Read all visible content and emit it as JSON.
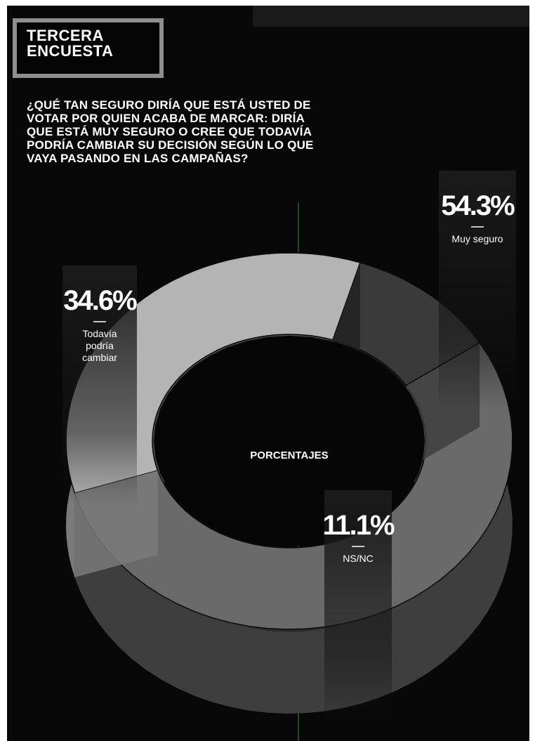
{
  "header": {
    "tag_line1": "TERCERA",
    "tag_line2": "ENCUESTA",
    "question_lines": [
      "¿QUÉ TAN SEGURO DIRÍA QUE ESTÁ USTED DE",
      "VOTAR POR QUIEN ACABA DE MARCAR: DIRÍA",
      "QUE ESTÁ MUY SEGURO O CREE QUE TODAVÍA",
      "PODRÍA CAMBIAR SU DECISIÓN SEGÚN LO QUE",
      "VAYA PASANDO EN LAS CAMPAÑAS?"
    ]
  },
  "colors": {
    "background": "#080808",
    "muy_seguro": "#6a6a6a",
    "todavia": "#b4b4b4",
    "nsnc": "#3a3a3a",
    "divider": "#2f7a3e"
  },
  "chart_data": {
    "type": "pie",
    "title": "",
    "center_label": "PORCENTAJES",
    "slices": [
      {
        "value": 54.3,
        "value_label": "54.3%",
        "label_lines": [
          "Muy seguro"
        ]
      },
      {
        "value": 34.6,
        "value_label": "34.6%",
        "label_lines": [
          "Todavía",
          "podría",
          "cambiar"
        ]
      },
      {
        "value": 11.1,
        "value_label": "11.1%",
        "label_lines": [
          "NS/NC"
        ]
      }
    ]
  }
}
